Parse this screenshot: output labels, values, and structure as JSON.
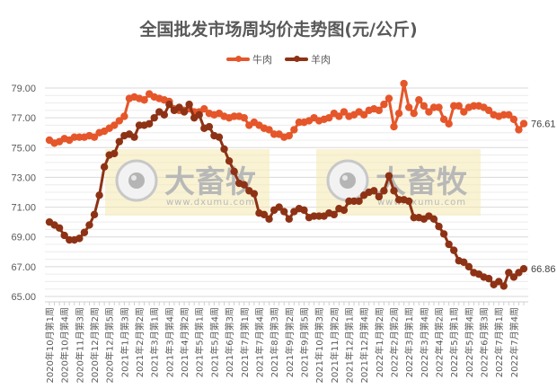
{
  "chart_data": {
    "type": "line",
    "title": "全国批发市场周均价走势图(元/公斤)",
    "xlabel": "",
    "ylabel": "",
    "ylim": [
      65,
      79
    ],
    "yticks": [
      "65.00",
      "67.00",
      "69.00",
      "71.00",
      "73.00",
      "75.00",
      "77.00",
      "79.00"
    ],
    "grid": true,
    "legend_position": "top",
    "x_tick_labels": [
      "2020年10月第1周",
      "2020年10月第4周",
      "2020年11月第3周",
      "2020年12月第2周",
      "2020年12月第5周",
      "2021年1月第3周",
      "2021年2月第2周",
      "2021年3月第1周",
      "2021年3月第4周",
      "2021年4月第2周",
      "2021年5月第1周",
      "2021年5月第4周",
      "2021年6月第3周",
      "2021年7月第1周",
      "2021年7月第4周",
      "2021年8月第3周",
      "2021年9月第2周",
      "2021年9月第5周",
      "2021年10月第3周",
      "2021年11月第2周",
      "2021年12月第1周",
      "2021年12月第4周",
      "2022年1月第2周",
      "2022年2月第2周",
      "2022年3月第1周",
      "2022年3月第4周",
      "2022年4月第2周",
      "2022年5月第1周",
      "2022年5月第4周",
      "2022年6月第3周",
      "2022年7月第1周",
      "2022年7月第4周"
    ],
    "series": [
      {
        "name": "牛肉",
        "color": "#E5562A",
        "end_label": "76.61",
        "values": [
          75.5,
          75.3,
          75.4,
          75.6,
          75.5,
          75.7,
          75.7,
          75.7,
          75.8,
          75.7,
          76.0,
          76.1,
          76.3,
          76.5,
          76.8,
          77.1,
          78.3,
          78.4,
          78.3,
          78.2,
          78.6,
          78.4,
          78.3,
          78.2,
          78.1,
          77.6,
          77.5,
          77.5,
          77.6,
          77.4,
          77.4,
          77.6,
          77.3,
          77.2,
          77.3,
          77.1,
          77.0,
          77.1,
          77.1,
          77.0,
          76.5,
          76.7,
          76.5,
          76.3,
          76.2,
          75.9,
          75.9,
          75.7,
          75.8,
          76.2,
          76.7,
          76.7,
          76.8,
          77.0,
          76.8,
          76.9,
          77.0,
          77.3,
          77.1,
          77.4,
          77.1,
          77.2,
          77.4,
          77.2,
          77.5,
          77.6,
          77.5,
          77.9,
          78.3,
          76.4,
          77.3,
          79.3,
          77.7,
          77.3,
          78.2,
          77.8,
          77.4,
          77.7,
          77.7,
          76.9,
          76.6,
          77.8,
          77.8,
          77.4,
          77.7,
          77.8,
          77.8,
          77.7,
          77.5,
          77.2,
          77.1,
          77.2,
          77.2,
          76.9,
          76.2,
          76.61
        ]
      },
      {
        "name": "羊肉",
        "color": "#8E3215",
        "end_label": "66.86",
        "values": [
          70.0,
          69.8,
          69.6,
          69.1,
          68.8,
          68.8,
          68.9,
          69.3,
          69.8,
          70.5,
          71.8,
          73.7,
          74.5,
          74.6,
          75.4,
          75.8,
          75.9,
          75.7,
          76.5,
          76.5,
          76.6,
          77.0,
          77.4,
          77.2,
          77.9,
          77.5,
          77.7,
          77.4,
          77.9,
          77.0,
          77.2,
          76.3,
          76.4,
          75.8,
          75.7,
          74.9,
          74.1,
          73.4,
          72.6,
          72.5,
          72.1,
          71.9,
          70.6,
          70.5,
          70.2,
          70.8,
          71.0,
          70.7,
          70.2,
          70.7,
          70.9,
          70.8,
          70.3,
          70.4,
          70.4,
          70.4,
          70.6,
          70.5,
          70.9,
          70.8,
          71.4,
          71.4,
          71.4,
          71.8,
          72.0,
          72.1,
          71.7,
          72.1,
          73.1,
          72.1,
          71.5,
          71.5,
          71.4,
          70.3,
          70.3,
          70.2,
          70.4,
          70.2,
          69.7,
          69.2,
          68.5,
          68.1,
          67.4,
          67.3,
          67.0,
          66.6,
          66.5,
          66.3,
          66.2,
          65.8,
          66.0,
          65.7,
          66.6,
          66.3,
          66.6,
          66.86
        ]
      }
    ]
  },
  "legend": {
    "items": [
      {
        "label": "牛肉",
        "color": "#E5562A"
      },
      {
        "label": "羊肉",
        "color": "#8E3215"
      }
    ]
  },
  "watermark": {
    "brand": "大畜牧",
    "url": "www.dxumu.com"
  }
}
